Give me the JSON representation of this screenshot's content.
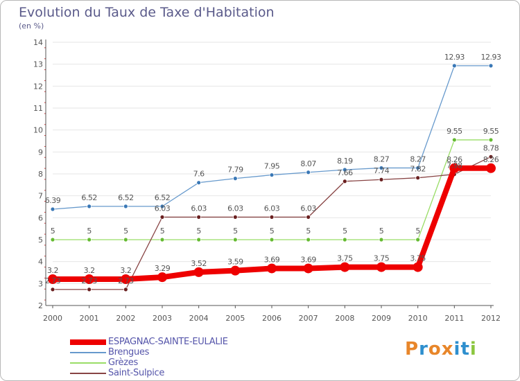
{
  "header": {
    "title": "Evolution du Taux de Taxe d'Habitation",
    "subtitle": "(en %)"
  },
  "brand": {
    "letters": [
      "P",
      "r",
      "o",
      "x",
      "i",
      "t",
      "i"
    ],
    "colors": [
      "#e8862a",
      "#2e8fce",
      "#e8862a",
      "#e8862a",
      "#2e8fce",
      "#2e8fce",
      "#8cc63f"
    ]
  },
  "colors": {
    "axis": "#555555",
    "grid": "#e6e6e6",
    "text": "#555555",
    "title": "#5a5a8a"
  },
  "chart_data": {
    "type": "line",
    "title": "Evolution du Taux de Taxe d'Habitation",
    "ylabel": "(en %)",
    "xlabel": "",
    "x": [
      "2000",
      "2001",
      "2002",
      "2003",
      "2004",
      "2005",
      "2006",
      "2007",
      "2008",
      "2009",
      "2010",
      "2011",
      "2012"
    ],
    "ylim": [
      2,
      14
    ],
    "yticks": [
      "2",
      "3",
      "4",
      "5",
      "6",
      "7",
      "8",
      "9",
      "10",
      "11",
      "12",
      "13",
      "14"
    ],
    "grid": true,
    "legend": "bottom-left",
    "series": [
      {
        "name": "ESPAGNAC-SAINTE-EULALIE",
        "color": "#ee0000",
        "width": 8,
        "marker": 7,
        "values": [
          3.2,
          3.2,
          3.2,
          3.29,
          3.52,
          3.59,
          3.69,
          3.69,
          3.75,
          3.75,
          3.75,
          8.26,
          8.26
        ],
        "labels": [
          "3.2",
          "3.2",
          "3.2",
          "3.29",
          "3.52",
          "3.59",
          "3.69",
          "3.69",
          "3.75",
          "3.75",
          "3.75",
          "8.26",
          "8.26"
        ]
      },
      {
        "name": "Brengues",
        "color": "#6699cc",
        "dot": "#3a78b6",
        "width": 1.3,
        "marker": 3,
        "values": [
          6.39,
          6.52,
          6.52,
          6.52,
          7.6,
          7.79,
          7.95,
          8.07,
          8.19,
          8.27,
          8.27,
          12.93,
          12.93
        ],
        "labels": [
          "6.39",
          "6.52",
          "6.52",
          "6.52",
          "7.6",
          "7.79",
          "7.95",
          "8.07",
          "8.19",
          "8.27",
          "8.27",
          "12.93",
          "12.93"
        ]
      },
      {
        "name": "Grèzes",
        "color": "#99dd66",
        "dot": "#66bb33",
        "width": 1.3,
        "marker": 3,
        "values": [
          5,
          5,
          5,
          5,
          5,
          5,
          5,
          5,
          5,
          5,
          5,
          9.55,
          9.55
        ],
        "labels": [
          "5",
          "5",
          "5",
          "5",
          "5",
          "5",
          "5",
          "5",
          "5",
          "5",
          "5",
          "9.55",
          "9.55"
        ]
      },
      {
        "name": "Saint-Sulpice",
        "color": "#884444",
        "dot": "#6a2020",
        "width": 1.3,
        "marker": 3,
        "values": [
          2.73,
          2.73,
          2.73,
          6.03,
          6.03,
          6.03,
          6.03,
          6.03,
          7.66,
          7.74,
          7.82,
          7.98,
          8.78
        ],
        "labels": [
          "2.73",
          "2.73",
          "2.73",
          "6.03",
          "6.03",
          "6.03",
          "6.03",
          "6.03",
          "7.66",
          "7.74",
          "7.82",
          "7.98",
          "8.78"
        ]
      }
    ]
  }
}
